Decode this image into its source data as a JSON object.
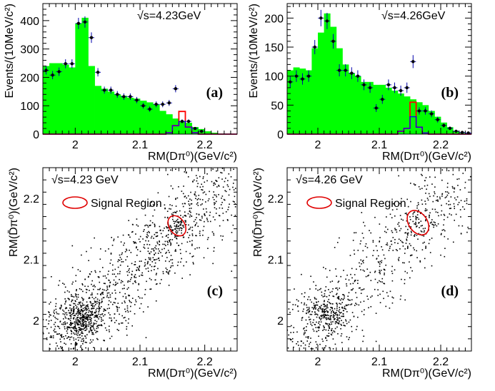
{
  "chart_data": [
    {
      "panel": "(a)",
      "type": "bar",
      "annotation": "√s=4.23GeV",
      "xlabel": "RM(Dπ⁰)(GeV/c²)",
      "ylabel": "Events/(10MeV/c²)",
      "xlim": [
        1.95,
        2.25
      ],
      "ylim": [
        0,
        460
      ],
      "x_ticks": [
        "2",
        "2.1",
        "2.2"
      ],
      "y_ticks": [
        "0",
        "100",
        "200",
        "300",
        "400"
      ],
      "bin_edges": [
        1.95,
        1.96,
        1.97,
        1.98,
        1.99,
        2.0,
        2.01,
        2.02,
        2.03,
        2.04,
        2.05,
        2.06,
        2.07,
        2.08,
        2.09,
        2.1,
        2.11,
        2.12,
        2.13,
        2.14,
        2.15,
        2.16,
        2.17,
        2.18,
        2.19,
        2.2,
        2.21,
        2.22,
        2.23,
        2.24,
        2.25
      ],
      "series": [
        {
          "kind": "background_fill",
          "color": "#00ff00",
          "values": [
            240,
            250,
            250,
            245,
            235,
            390,
            410,
            240,
            170,
            160,
            150,
            140,
            135,
            128,
            125,
            118,
            112,
            105,
            82,
            70,
            55,
            45,
            40,
            25,
            18,
            10,
            5,
            2,
            0,
            0
          ]
        },
        {
          "kind": "signal_mc",
          "color": "#ff0000",
          "values": [
            0,
            0,
            0,
            0,
            0,
            0,
            0,
            0,
            0,
            0,
            0,
            0,
            0,
            0,
            0,
            0,
            0,
            0,
            0,
            5,
            30,
            80,
            25,
            5,
            0,
            0,
            0,
            0,
            0,
            0
          ]
        },
        {
          "kind": "blue_line",
          "color": "#0000ff",
          "values": [
            0,
            0,
            0,
            0,
            0,
            0,
            0,
            0,
            0,
            0,
            0,
            0,
            0,
            0,
            0,
            0,
            0,
            0,
            0,
            5,
            30,
            45,
            25,
            5,
            0,
            0,
            0,
            0,
            0,
            0
          ]
        },
        {
          "kind": "data_points",
          "color": "#000000",
          "x": [
            1.955,
            1.965,
            1.975,
            1.985,
            1.995,
            2.005,
            2.015,
            2.025,
            2.035,
            2.045,
            2.055,
            2.065,
            2.075,
            2.085,
            2.095,
            2.105,
            2.115,
            2.125,
            2.135,
            2.145,
            2.155,
            2.165,
            2.175,
            2.185,
            2.195
          ],
          "y": [
            225,
            208,
            220,
            248,
            248,
            390,
            395,
            340,
            218,
            155,
            155,
            140,
            132,
            132,
            120,
            100,
            88,
            105,
            105,
            110,
            160,
            45,
            45,
            20,
            10
          ]
        }
      ]
    },
    {
      "panel": "(b)",
      "type": "bar",
      "annotation": "√s=4.26GeV",
      "xlabel": "RM(Dπ⁰)(GeV/c²)",
      "ylabel": "Events/(10MeV/c²)",
      "xlim": [
        1.95,
        2.25
      ],
      "ylim": [
        0,
        225
      ],
      "x_ticks": [
        "2",
        "2.1",
        "2.2"
      ],
      "y_ticks": [
        "0",
        "50",
        "100",
        "150",
        "200"
      ],
      "bin_edges": [
        1.95,
        1.96,
        1.97,
        1.98,
        1.99,
        2.0,
        2.01,
        2.02,
        2.03,
        2.04,
        2.05,
        2.06,
        2.07,
        2.08,
        2.09,
        2.1,
        2.11,
        2.12,
        2.13,
        2.14,
        2.15,
        2.16,
        2.17,
        2.18,
        2.19,
        2.2,
        2.21,
        2.22,
        2.23,
        2.24,
        2.25
      ],
      "series": [
        {
          "kind": "background_fill",
          "color": "#00ff00",
          "values": [
            110,
            115,
            113,
            110,
            148,
            175,
            208,
            185,
            148,
            120,
            105,
            100,
            90,
            90,
            85,
            85,
            80,
            75,
            70,
            65,
            60,
            55,
            50,
            40,
            30,
            20,
            12,
            5,
            2,
            0
          ]
        },
        {
          "kind": "signal_mc",
          "color": "#ff0000",
          "values": [
            0,
            0,
            0,
            0,
            0,
            0,
            0,
            0,
            0,
            0,
            0,
            0,
            0,
            0,
            0,
            0,
            0,
            0,
            5,
            10,
            55,
            12,
            2,
            0,
            0,
            0,
            0,
            0,
            0,
            0
          ]
        },
        {
          "kind": "blue_line",
          "color": "#0000ff",
          "values": [
            0,
            0,
            0,
            0,
            0,
            0,
            0,
            0,
            0,
            0,
            0,
            0,
            0,
            0,
            0,
            0,
            0,
            0,
            5,
            10,
            30,
            12,
            2,
            0,
            0,
            0,
            0,
            0,
            0,
            0
          ]
        },
        {
          "kind": "data_points",
          "color": "#000000",
          "x": [
            1.955,
            1.965,
            1.975,
            1.985,
            1.995,
            2.005,
            2.015,
            2.025,
            2.035,
            2.045,
            2.055,
            2.065,
            2.075,
            2.085,
            2.095,
            2.105,
            2.115,
            2.125,
            2.135,
            2.145,
            2.155,
            2.165,
            2.175,
            2.185,
            2.195,
            2.205,
            2.215,
            2.225,
            2.235,
            2.245
          ],
          "y": [
            90,
            100,
            95,
            100,
            150,
            200,
            195,
            160,
            110,
            110,
            105,
            100,
            85,
            80,
            45,
            60,
            85,
            80,
            75,
            80,
            125,
            40,
            40,
            35,
            25,
            15,
            10,
            5,
            3,
            2
          ]
        }
      ]
    },
    {
      "panel": "(c)",
      "type": "scatter",
      "annotation": "√s=4.23 GeV",
      "legend": "Signal Region",
      "xlabel": "RM(Dπ⁰)(GeV/c²)",
      "ylabel": "RM(D̄π⁰)(GeV/c²)",
      "xlim": [
        1.95,
        2.25
      ],
      "ylim": [
        1.95,
        2.25
      ],
      "x_ticks": [
        "2",
        "2.1",
        "2.2"
      ],
      "y_ticks": [
        "2",
        "2.1",
        "2.2"
      ],
      "signal_region": {
        "cx": 2.157,
        "cy": 2.155,
        "rx": 0.012,
        "ry": 0.018
      },
      "n_points": 1600,
      "cluster_center": [
        2.01,
        2.005
      ],
      "seed": 7
    },
    {
      "panel": "(d)",
      "type": "scatter",
      "annotation": "√s=4.26 GeV",
      "legend": "Signal Region",
      "xlabel": "RM(Dπ⁰)(GeV/c²)",
      "ylabel": "RM(D̄π⁰)(GeV/c²)",
      "xlim": [
        1.95,
        2.25
      ],
      "ylim": [
        1.95,
        2.25
      ],
      "x_ticks": [
        "2",
        "2.1",
        "2.2"
      ],
      "y_ticks": [
        "2",
        "2.1",
        "2.2"
      ],
      "signal_region": {
        "cx": 2.163,
        "cy": 2.16,
        "rx": 0.015,
        "ry": 0.022
      },
      "n_points": 1000,
      "cluster_center": [
        2.015,
        2.01
      ],
      "seed": 13
    }
  ]
}
